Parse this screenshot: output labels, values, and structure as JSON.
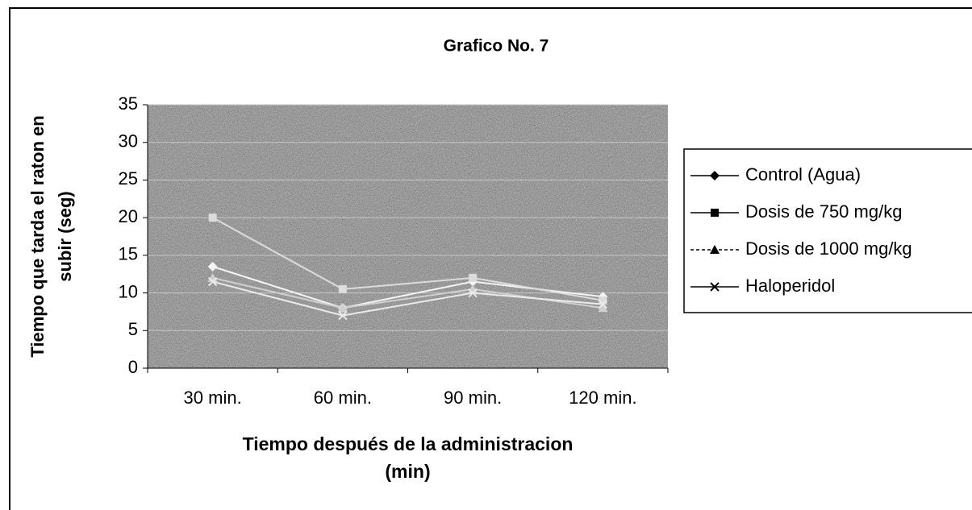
{
  "chart_data": {
    "type": "line",
    "title": "Grafico No. 7",
    "ylabel": [
      "Tiempo que tarda el raton en",
      "subir (seg)"
    ],
    "xlabel": [
      "Tiempo después de la administracion",
      "(min)"
    ],
    "categories": [
      "30 min.",
      "60 min.",
      "90 min.",
      "120 min."
    ],
    "series": [
      {
        "name": "Control (Agua)",
        "color": "#f4f4f4",
        "marker": "diamond",
        "values": [
          13.5,
          8,
          11.5,
          9.5
        ]
      },
      {
        "name": "Dosis  de 750 mg/kg",
        "color": "#dcdcdc",
        "marker": "square",
        "values": [
          20,
          10.5,
          12,
          9
        ]
      },
      {
        "name": "Dosis de 1000 mg/kg",
        "color": "#cfcfcf",
        "marker": "triangle",
        "values": [
          12,
          8,
          10.5,
          8
        ]
      },
      {
        "name": "Haloperidol",
        "color": "#ebebeb",
        "marker": "x",
        "values": [
          11.5,
          7,
          10,
          8.5
        ]
      }
    ],
    "ylim": [
      0,
      35
    ],
    "yticks": [
      0,
      5,
      10,
      15,
      20,
      25,
      30,
      35
    ],
    "grid": true,
    "legend": "right"
  }
}
